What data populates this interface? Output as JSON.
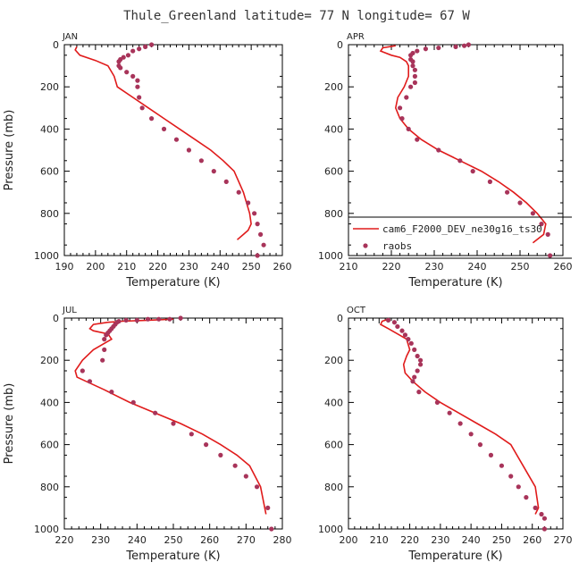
{
  "title": "Thule_Greenland  latitude= 77 N longitude= 67 W",
  "colors": {
    "model": "#e01b1b",
    "obs": "#a8345a",
    "axis": "#000000"
  },
  "legend": {
    "model_label": "cam6_F2000_DEV_ne30g16_ts30",
    "obs_label": "raobs"
  },
  "chart_data": [
    {
      "type": "line",
      "panel": "JAN",
      "xlabel": "Temperature (K)",
      "ylabel": "Pressure (mb)",
      "xlim": [
        190,
        260
      ],
      "ylim": [
        1000,
        0
      ],
      "xticks": [
        190,
        200,
        210,
        220,
        230,
        240,
        250,
        260
      ],
      "yticks": [
        0,
        200,
        400,
        600,
        800,
        1000
      ],
      "model": {
        "x": [
          194,
          193.5,
          195,
          200,
          204,
          206,
          207,
          212,
          217,
          222,
          227,
          232,
          237,
          241,
          244.5,
          247.5,
          249.5,
          250,
          249,
          247.5,
          245.5
        ],
        "y": [
          10,
          25,
          50,
          75,
          100,
          150,
          200,
          250,
          300,
          350,
          400,
          450,
          500,
          550,
          600,
          700,
          800,
          850,
          880,
          900,
          925
        ]
      },
      "obs": {
        "x": [
          218,
          216,
          214,
          212,
          210.5,
          209,
          208,
          207.5,
          207.5,
          208,
          210,
          212,
          213.5,
          213.5,
          214,
          215,
          218,
          222,
          226,
          230,
          234,
          238,
          242,
          246,
          249,
          251,
          252,
          253,
          254,
          252
        ],
        "y": [
          0,
          10,
          20,
          30,
          50,
          60,
          70,
          80,
          100,
          110,
          130,
          150,
          170,
          200,
          250,
          300,
          350,
          400,
          450,
          500,
          550,
          600,
          650,
          700,
          750,
          800,
          850,
          900,
          950,
          1000
        ]
      }
    },
    {
      "type": "line",
      "panel": "APR",
      "xlabel": "Temperature (K)",
      "ylabel": "",
      "xlim": [
        210,
        260
      ],
      "ylim": [
        1000,
        0
      ],
      "xticks": [
        210,
        220,
        230,
        240,
        250,
        260
      ],
      "yticks": [
        0,
        200,
        400,
        600,
        800,
        1000
      ],
      "model": {
        "x": [
          221,
          218,
          217.5,
          220,
          222,
          223.5,
          224,
          224,
          223,
          221.5,
          221,
          222,
          224,
          227,
          231,
          236,
          241,
          245,
          248.5,
          251.5,
          254,
          256,
          255.5,
          253
        ],
        "y": [
          5,
          15,
          30,
          50,
          60,
          80,
          100,
          150,
          200,
          250,
          300,
          350,
          400,
          450,
          500,
          550,
          600,
          650,
          700,
          750,
          800,
          850,
          900,
          940
        ]
      },
      "obs": {
        "x": [
          238,
          237,
          235,
          231,
          228,
          226,
          225,
          224.5,
          224.5,
          225,
          225,
          225.5,
          225.5,
          225.5,
          224.5,
          223.5,
          222,
          222.5,
          224,
          226,
          231,
          236,
          239,
          243,
          247,
          250,
          253,
          255,
          256.5,
          257
        ],
        "y": [
          0,
          5,
          10,
          15,
          20,
          30,
          40,
          50,
          70,
          80,
          100,
          120,
          150,
          180,
          200,
          250,
          300,
          350,
          400,
          450,
          500,
          550,
          600,
          650,
          700,
          750,
          800,
          850,
          900,
          1000
        ]
      }
    },
    {
      "type": "line",
      "panel": "JUL",
      "xlabel": "Temperature (K)",
      "ylabel": "Pressure (mb)",
      "xlim": [
        220,
        280
      ],
      "ylim": [
        1000,
        0
      ],
      "xticks": [
        220,
        230,
        240,
        250,
        260,
        270,
        280
      ],
      "yticks": [
        0,
        200,
        400,
        600,
        800,
        1000
      ],
      "model": {
        "x": [
          250,
          243,
          236,
          232,
          228,
          227,
          228,
          232,
          233,
          228,
          225,
          223,
          223.5,
          226,
          231,
          238,
          245,
          252,
          258,
          263,
          267.5,
          271,
          274,
          275.5
        ],
        "y": [
          5,
          10,
          15,
          20,
          30,
          50,
          60,
          75,
          100,
          150,
          200,
          250,
          280,
          300,
          340,
          400,
          450,
          500,
          550,
          600,
          650,
          700,
          800,
          930
        ]
      },
      "obs": {
        "x": [
          252,
          249,
          246,
          243,
          240,
          237,
          235,
          234.5,
          234,
          233.5,
          233,
          232.5,
          232,
          231.5,
          231,
          231,
          230.5,
          225,
          227,
          233,
          239,
          245,
          250,
          255,
          259,
          263,
          267,
          270,
          273,
          276,
          277
        ],
        "y": [
          0,
          5,
          5,
          5,
          10,
          10,
          15,
          20,
          30,
          40,
          50,
          60,
          70,
          80,
          100,
          150,
          200,
          250,
          300,
          350,
          400,
          450,
          500,
          550,
          600,
          650,
          700,
          750,
          800,
          900,
          1000
        ]
      }
    },
    {
      "type": "line",
      "panel": "OCT",
      "xlabel": "Temperature (K)",
      "ylabel": "",
      "xlim": [
        200,
        270
      ],
      "ylim": [
        1000,
        0
      ],
      "xticks": [
        200,
        210,
        220,
        230,
        240,
        250,
        260,
        270
      ],
      "yticks": [
        0,
        200,
        400,
        600,
        800,
        1000
      ],
      "model": {
        "x": [
          213,
          211,
          210.5,
          213,
          216,
          219,
          220,
          219,
          218,
          218.5,
          221,
          225,
          230,
          236,
          242,
          248,
          253,
          257,
          261,
          262,
          261
        ],
        "y": [
          5,
          15,
          30,
          50,
          75,
          100,
          150,
          180,
          220,
          260,
          300,
          350,
          400,
          450,
          500,
          550,
          600,
          700,
          800,
          900,
          930
        ]
      },
      "obs": {
        "x": [
          213,
          215,
          216,
          217.5,
          218.5,
          219.5,
          220.5,
          221.5,
          222.5,
          223.5,
          223.5,
          222.5,
          221.5,
          221,
          223,
          229,
          233,
          236.5,
          240,
          243,
          246.5,
          250,
          253,
          255.5,
          258,
          261,
          263,
          264,
          264
        ],
        "y": [
          10,
          20,
          40,
          60,
          80,
          100,
          120,
          150,
          180,
          200,
          220,
          250,
          280,
          300,
          350,
          400,
          450,
          500,
          550,
          600,
          650,
          700,
          750,
          800,
          850,
          900,
          930,
          950,
          1000
        ]
      }
    }
  ]
}
